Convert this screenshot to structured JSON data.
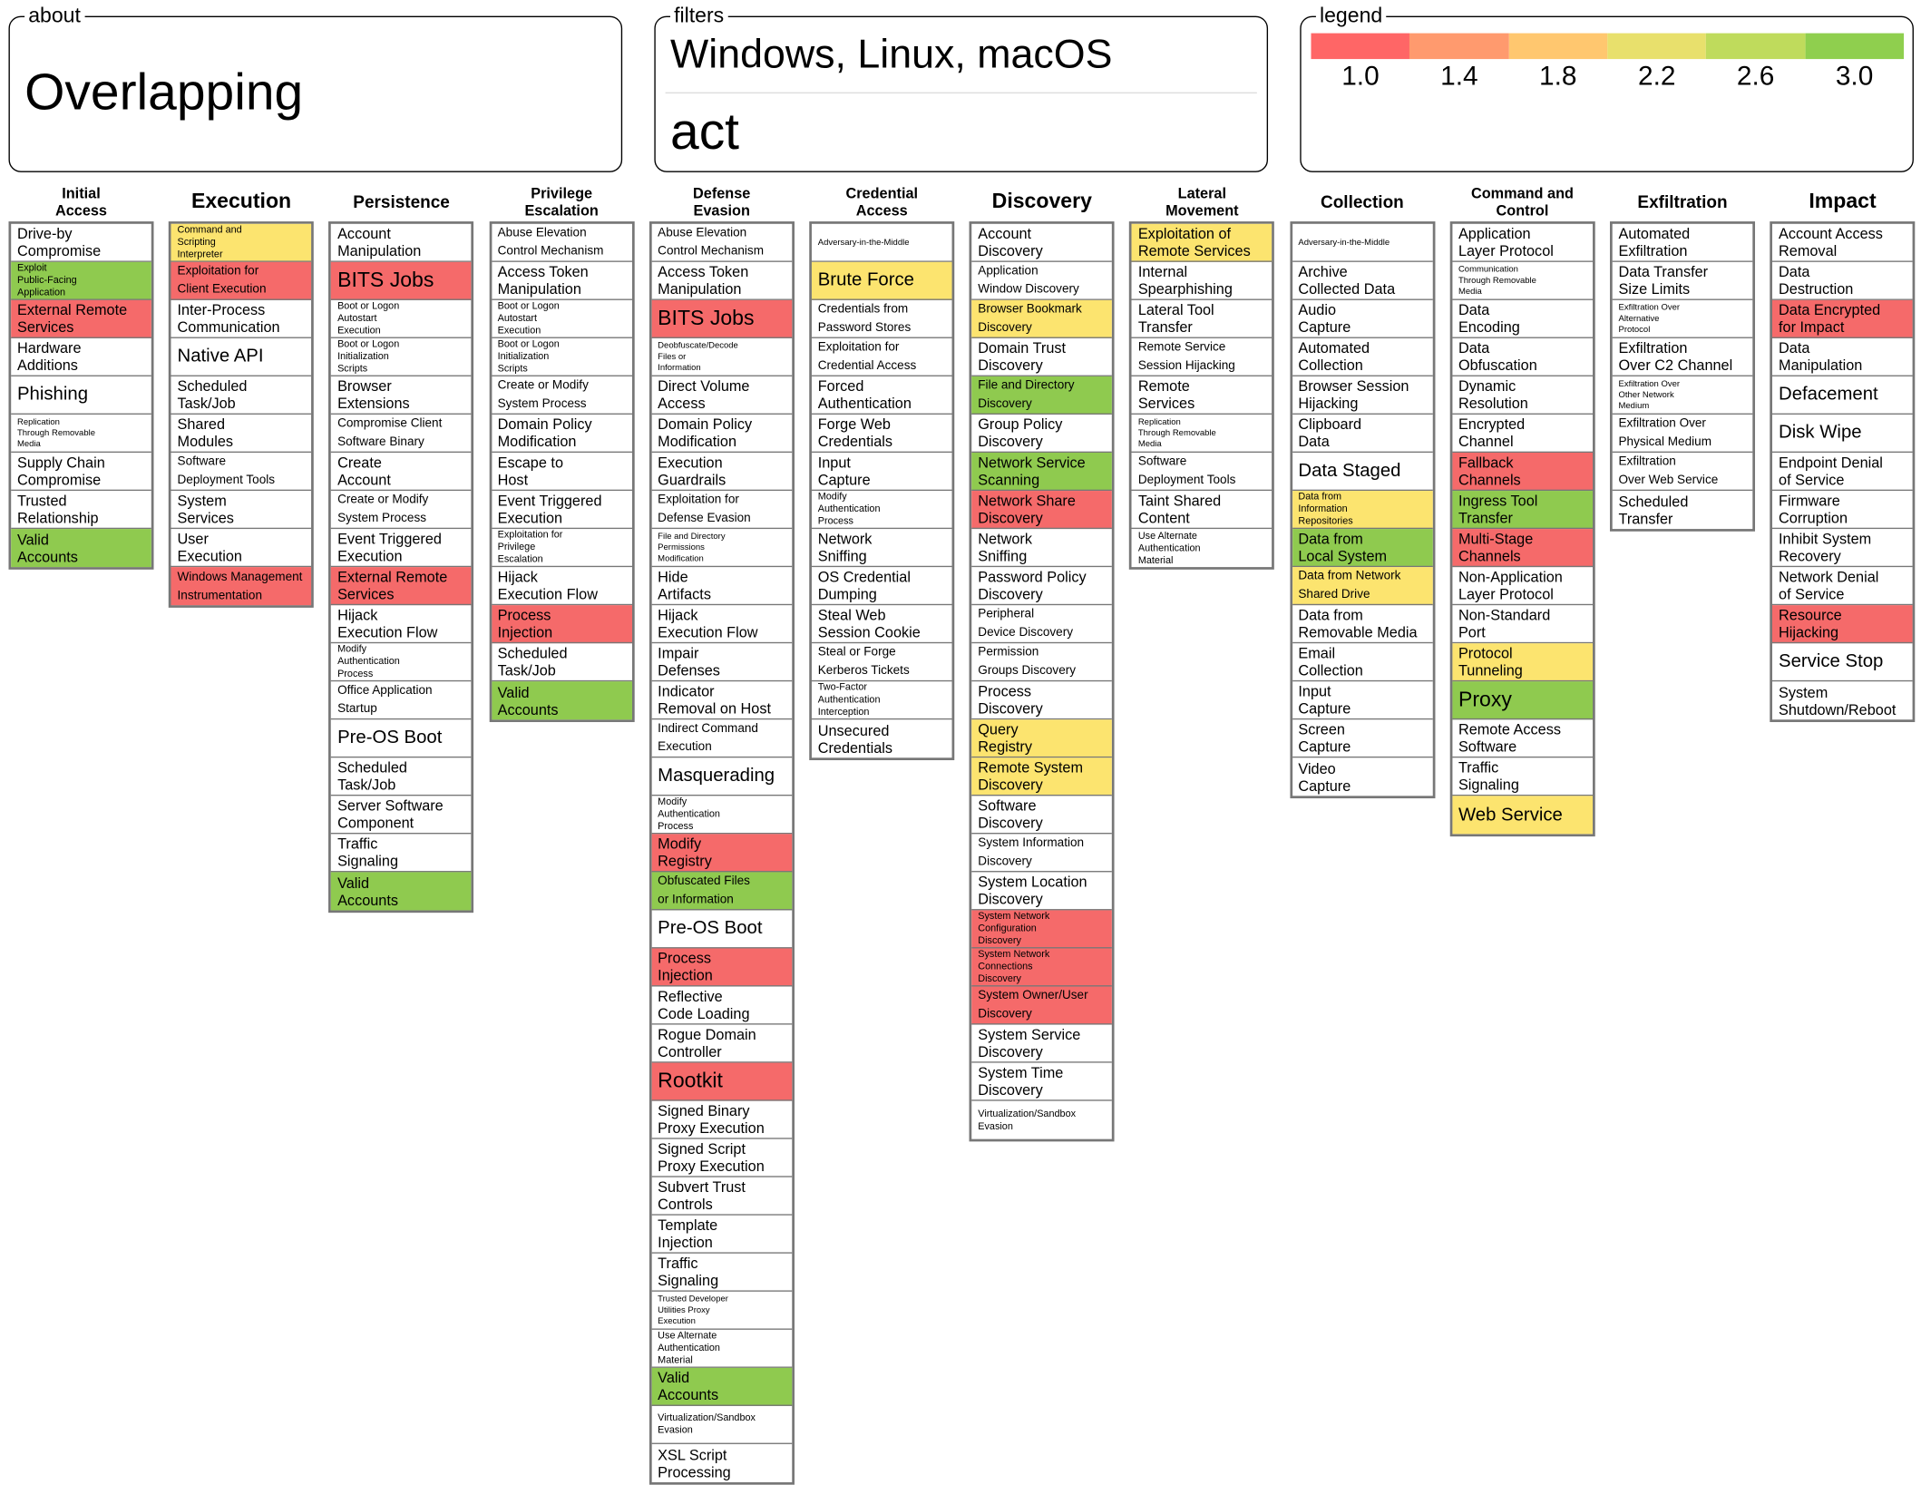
{
  "about": {
    "label": "about",
    "text": "Overlapping"
  },
  "filters": {
    "label": "filters",
    "platforms": "Windows, Linux, macOS",
    "stage": "act"
  },
  "legend": {
    "label": "legend",
    "items": [
      {
        "color": "#ff6666",
        "value": "1.0"
      },
      {
        "color": "#ff9a6e",
        "value": "1.4"
      },
      {
        "color": "#ffc76f",
        "value": "1.8"
      },
      {
        "color": "#e8e06c",
        "value": "2.2"
      },
      {
        "color": "#bfdb5c",
        "value": "2.6"
      },
      {
        "color": "#8fcf4e",
        "value": "3.0"
      }
    ]
  },
  "colors": {
    "red": "#f56a6a",
    "yellow": "#fce46f",
    "green": "#8fca4f",
    "border": "#777777"
  },
  "tactics": [
    {
      "name": "Initial\nAccess",
      "techniques": [
        {
          "name": "Drive-by\nCompromise"
        },
        {
          "name": "Exploit\nPublic-Facing\nApplication",
          "color": "green"
        },
        {
          "name": "External Remote\nServices",
          "color": "red"
        },
        {
          "name": "Hardware\nAdditions"
        },
        {
          "name": "Phishing"
        },
        {
          "name": "Replication\nThrough Removable\nMedia"
        },
        {
          "name": "Supply Chain\nCompromise"
        },
        {
          "name": "Trusted\nRelationship"
        },
        {
          "name": "Valid\nAccounts",
          "color": "green"
        }
      ]
    },
    {
      "name": "Execution",
      "techniques": [
        {
          "name": "Command and\nScripting\nInterpreter",
          "color": "yellow"
        },
        {
          "name": "Exploitation for\nClient Execution",
          "color": "red"
        },
        {
          "name": "Inter-Process\nCommunication"
        },
        {
          "name": "Native API"
        },
        {
          "name": "Scheduled\nTask/Job"
        },
        {
          "name": "Shared\nModules"
        },
        {
          "name": "Software\nDeployment Tools"
        },
        {
          "name": "System\nServices"
        },
        {
          "name": "User\nExecution"
        },
        {
          "name": "Windows Management\nInstrumentation",
          "color": "red"
        }
      ]
    },
    {
      "name": "Persistence",
      "techniques": [
        {
          "name": "Account\nManipulation"
        },
        {
          "name": "BITS Jobs",
          "color": "red"
        },
        {
          "name": "Boot or Logon\nAutostart\nExecution"
        },
        {
          "name": "Boot or Logon\nInitialization\nScripts"
        },
        {
          "name": "Browser\nExtensions"
        },
        {
          "name": "Compromise Client\nSoftware Binary"
        },
        {
          "name": "Create\nAccount"
        },
        {
          "name": "Create or Modify\nSystem Process"
        },
        {
          "name": "Event Triggered\nExecution"
        },
        {
          "name": "External Remote\nServices",
          "color": "red"
        },
        {
          "name": "Hijack\nExecution Flow"
        },
        {
          "name": "Modify\nAuthentication\nProcess"
        },
        {
          "name": "Office Application\nStartup"
        },
        {
          "name": "Pre-OS Boot"
        },
        {
          "name": "Scheduled\nTask/Job"
        },
        {
          "name": "Server Software\nComponent"
        },
        {
          "name": "Traffic\nSignaling"
        },
        {
          "name": "Valid\nAccounts",
          "color": "green"
        }
      ]
    },
    {
      "name": "Privilege\nEscalation",
      "techniques": [
        {
          "name": "Abuse Elevation\nControl Mechanism"
        },
        {
          "name": "Access Token\nManipulation"
        },
        {
          "name": "Boot or Logon\nAutostart\nExecution"
        },
        {
          "name": "Boot or Logon\nInitialization\nScripts"
        },
        {
          "name": "Create or Modify\nSystem Process"
        },
        {
          "name": "Domain Policy\nModification"
        },
        {
          "name": "Escape to\nHost"
        },
        {
          "name": "Event Triggered\nExecution"
        },
        {
          "name": "Exploitation for\nPrivilege\nEscalation"
        },
        {
          "name": "Hijack\nExecution Flow"
        },
        {
          "name": "Process\nInjection",
          "color": "red"
        },
        {
          "name": "Scheduled\nTask/Job"
        },
        {
          "name": "Valid\nAccounts",
          "color": "green"
        }
      ]
    },
    {
      "name": "Defense\nEvasion",
      "techniques": [
        {
          "name": "Abuse Elevation\nControl Mechanism"
        },
        {
          "name": "Access Token\nManipulation"
        },
        {
          "name": "BITS Jobs",
          "color": "red"
        },
        {
          "name": "Deobfuscate/Decode\nFiles or\nInformation"
        },
        {
          "name": "Direct Volume\nAccess"
        },
        {
          "name": "Domain Policy\nModification"
        },
        {
          "name": "Execution\nGuardrails"
        },
        {
          "name": "Exploitation for\nDefense Evasion"
        },
        {
          "name": "File and Directory\nPermissions\nModification"
        },
        {
          "name": "Hide\nArtifacts"
        },
        {
          "name": "Hijack\nExecution Flow"
        },
        {
          "name": "Impair\nDefenses"
        },
        {
          "name": "Indicator\nRemoval on Host"
        },
        {
          "name": "Indirect Command\nExecution"
        },
        {
          "name": "Masquerading"
        },
        {
          "name": "Modify\nAuthentication\nProcess"
        },
        {
          "name": "Modify\nRegistry",
          "color": "red"
        },
        {
          "name": "Obfuscated Files\nor Information",
          "color": "green"
        },
        {
          "name": "Pre-OS Boot"
        },
        {
          "name": "Process\nInjection",
          "color": "red"
        },
        {
          "name": "Reflective\nCode Loading"
        },
        {
          "name": "Rogue Domain\nController"
        },
        {
          "name": "Rootkit",
          "color": "red"
        },
        {
          "name": "Signed Binary\nProxy Execution"
        },
        {
          "name": "Signed Script\nProxy Execution"
        },
        {
          "name": "Subvert Trust\nControls"
        },
        {
          "name": "Template\nInjection"
        },
        {
          "name": "Traffic\nSignaling"
        },
        {
          "name": "Trusted Developer\nUtilities Proxy\nExecution"
        },
        {
          "name": "Use Alternate\nAuthentication\nMaterial"
        },
        {
          "name": "Valid\nAccounts",
          "color": "green"
        },
        {
          "name": "Virtualization/Sandbox\nEvasion"
        },
        {
          "name": "XSL Script\nProcessing"
        }
      ]
    },
    {
      "name": "Credential\nAccess",
      "techniques": [
        {
          "name": "Adversary-in-the-Middle"
        },
        {
          "name": "Brute Force",
          "color": "yellow"
        },
        {
          "name": "Credentials from\nPassword Stores"
        },
        {
          "name": "Exploitation for\nCredential Access"
        },
        {
          "name": "Forced\nAuthentication"
        },
        {
          "name": "Forge Web\nCredentials"
        },
        {
          "name": "Input\nCapture"
        },
        {
          "name": "Modify\nAuthentication\nProcess"
        },
        {
          "name": "Network\nSniffing"
        },
        {
          "name": "OS Credential\nDumping"
        },
        {
          "name": "Steal Web\nSession Cookie"
        },
        {
          "name": "Steal or Forge\nKerberos Tickets"
        },
        {
          "name": "Two-Factor\nAuthentication\nInterception"
        },
        {
          "name": "Unsecured\nCredentials"
        }
      ]
    },
    {
      "name": "Discovery",
      "techniques": [
        {
          "name": "Account\nDiscovery"
        },
        {
          "name": "Application\nWindow Discovery"
        },
        {
          "name": "Browser Bookmark\nDiscovery",
          "color": "yellow"
        },
        {
          "name": "Domain Trust\nDiscovery"
        },
        {
          "name": "File and Directory\nDiscovery",
          "color": "green"
        },
        {
          "name": "Group Policy\nDiscovery"
        },
        {
          "name": "Network Service\nScanning",
          "color": "green"
        },
        {
          "name": "Network Share\nDiscovery",
          "color": "red"
        },
        {
          "name": "Network\nSniffing"
        },
        {
          "name": "Password Policy\nDiscovery"
        },
        {
          "name": "Peripheral\nDevice Discovery"
        },
        {
          "name": "Permission\nGroups Discovery"
        },
        {
          "name": "Process\nDiscovery"
        },
        {
          "name": "Query\nRegistry",
          "color": "yellow"
        },
        {
          "name": "Remote System\nDiscovery",
          "color": "yellow"
        },
        {
          "name": "Software\nDiscovery"
        },
        {
          "name": "System Information\nDiscovery"
        },
        {
          "name": "System Location\nDiscovery"
        },
        {
          "name": "System Network\nConfiguration\nDiscovery",
          "color": "red"
        },
        {
          "name": "System Network\nConnections\nDiscovery",
          "color": "red"
        },
        {
          "name": "System Owner/User\nDiscovery",
          "color": "red"
        },
        {
          "name": "System Service\nDiscovery"
        },
        {
          "name": "System Time\nDiscovery"
        },
        {
          "name": "Virtualization/Sandbox\nEvasion"
        }
      ]
    },
    {
      "name": "Lateral\nMovement",
      "techniques": [
        {
          "name": "Exploitation of\nRemote Services",
          "color": "yellow"
        },
        {
          "name": "Internal\nSpearphishing"
        },
        {
          "name": "Lateral Tool\nTransfer"
        },
        {
          "name": "Remote Service\nSession Hijacking"
        },
        {
          "name": "Remote\nServices"
        },
        {
          "name": "Replication\nThrough Removable\nMedia"
        },
        {
          "name": "Software\nDeployment Tools"
        },
        {
          "name": "Taint Shared\nContent"
        },
        {
          "name": "Use Alternate\nAuthentication\nMaterial"
        }
      ]
    },
    {
      "name": "Collection",
      "techniques": [
        {
          "name": "Adversary-in-the-Middle"
        },
        {
          "name": "Archive\nCollected Data"
        },
        {
          "name": "Audio\nCapture"
        },
        {
          "name": "Automated\nCollection"
        },
        {
          "name": "Browser Session\nHijacking"
        },
        {
          "name": "Clipboard\nData"
        },
        {
          "name": "Data Staged"
        },
        {
          "name": "Data from\nInformation\nRepositories",
          "color": "yellow"
        },
        {
          "name": "Data from\nLocal System",
          "color": "green"
        },
        {
          "name": "Data from Network\nShared Drive",
          "color": "yellow"
        },
        {
          "name": "Data from\nRemovable Media"
        },
        {
          "name": "Email\nCollection"
        },
        {
          "name": "Input\nCapture"
        },
        {
          "name": "Screen\nCapture"
        },
        {
          "name": "Video\nCapture"
        }
      ]
    },
    {
      "name": "Command and\nControl",
      "techniques": [
        {
          "name": "Application\nLayer Protocol"
        },
        {
          "name": "Communication\nThrough Removable\nMedia"
        },
        {
          "name": "Data\nEncoding"
        },
        {
          "name": "Data\nObfuscation"
        },
        {
          "name": "Dynamic\nResolution"
        },
        {
          "name": "Encrypted\nChannel"
        },
        {
          "name": "Fallback\nChannels",
          "color": "red"
        },
        {
          "name": "Ingress Tool\nTransfer",
          "color": "green"
        },
        {
          "name": "Multi-Stage\nChannels",
          "color": "red"
        },
        {
          "name": "Non-Application\nLayer Protocol"
        },
        {
          "name": "Non-Standard\nPort"
        },
        {
          "name": "Protocol\nTunneling",
          "color": "yellow"
        },
        {
          "name": "Proxy",
          "color": "green"
        },
        {
          "name": "Remote Access\nSoftware"
        },
        {
          "name": "Traffic\nSignaling"
        },
        {
          "name": "Web Service",
          "color": "yellow"
        }
      ]
    },
    {
      "name": "Exfiltration",
      "techniques": [
        {
          "name": "Automated\nExfiltration"
        },
        {
          "name": "Data Transfer\nSize Limits"
        },
        {
          "name": "Exfiltration Over\nAlternative\nProtocol"
        },
        {
          "name": "Exfiltration\nOver C2 Channel"
        },
        {
          "name": "Exfiltration Over\nOther Network\nMedium"
        },
        {
          "name": "Exfiltration Over\nPhysical Medium"
        },
        {
          "name": "Exfiltration\nOver Web Service"
        },
        {
          "name": "Scheduled\nTransfer"
        }
      ]
    },
    {
      "name": "Impact",
      "techniques": [
        {
          "name": "Account Access\nRemoval"
        },
        {
          "name": "Data\nDestruction"
        },
        {
          "name": "Data Encrypted\nfor Impact",
          "color": "red"
        },
        {
          "name": "Data\nManipulation"
        },
        {
          "name": "Defacement"
        },
        {
          "name": "Disk Wipe"
        },
        {
          "name": "Endpoint Denial\nof Service"
        },
        {
          "name": "Firmware\nCorruption"
        },
        {
          "name": "Inhibit System\nRecovery"
        },
        {
          "name": "Network Denial\nof Service"
        },
        {
          "name": "Resource\nHijacking",
          "color": "red"
        },
        {
          "name": "Service Stop"
        },
        {
          "name": "System\nShutdown/Reboot"
        }
      ]
    }
  ]
}
